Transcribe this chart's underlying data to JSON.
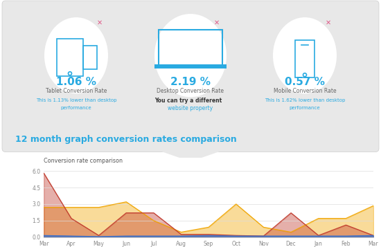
{
  "months": [
    "Mar",
    "Apr",
    "May",
    "Jun",
    "Jul",
    "Aug",
    "Sep",
    "Oct",
    "Nov",
    "Dec",
    "Jan",
    "Feb",
    "Mar"
  ],
  "mobile": [
    0.15,
    0.1,
    0.05,
    0.1,
    0.1,
    0.1,
    0.15,
    0.1,
    0.1,
    0.1,
    0.1,
    0.1,
    0.15
  ],
  "tablet": [
    5.8,
    1.7,
    0.15,
    2.2,
    2.2,
    0.25,
    0.25,
    0.15,
    0.1,
    2.2,
    0.15,
    1.1,
    0.15
  ],
  "desktop": [
    2.7,
    2.7,
    2.7,
    3.2,
    1.5,
    0.45,
    0.9,
    3.0,
    0.9,
    0.45,
    1.7,
    1.7,
    2.85
  ],
  "chart_title": "Conversion rate comparison",
  "ylim": [
    0.0,
    6.5
  ],
  "yticks": [
    0.0,
    1.5,
    3.0,
    4.5,
    6.0
  ],
  "mobile_color": "#4472c4",
  "tablet_color": "#c0392b",
  "desktop_color": "#f0a500",
  "bg_color": "#e8e8e8",
  "chart_bg": "#ffffff",
  "title_text": "12 month graph conversion rates comparison",
  "title_color": "#29aae1",
  "card_bg": "#e0e0e0",
  "tablet_pct": "1.06 %",
  "desktop_pct": "2.19 %",
  "mobile_pct": "0.57 %",
  "tablet_label": "Tablet Conversion Rate",
  "desktop_label": "Desktop Conversion Rate",
  "mobile_label": "Mobile Conversion Rate",
  "tablet_sub1": "This is 1.13% lower than desktop",
  "tablet_sub2": "performance",
  "desktop_sub1": "You can try a different ",
  "desktop_sub2": "website property",
  "mobile_sub1": "This is 1.62% lower than desktop",
  "mobile_sub2": "performance",
  "accent_color": "#29aae1",
  "cross_color": "#e05c8a",
  "sub_color": "#29aae1",
  "desktop_text_color": "#333333"
}
